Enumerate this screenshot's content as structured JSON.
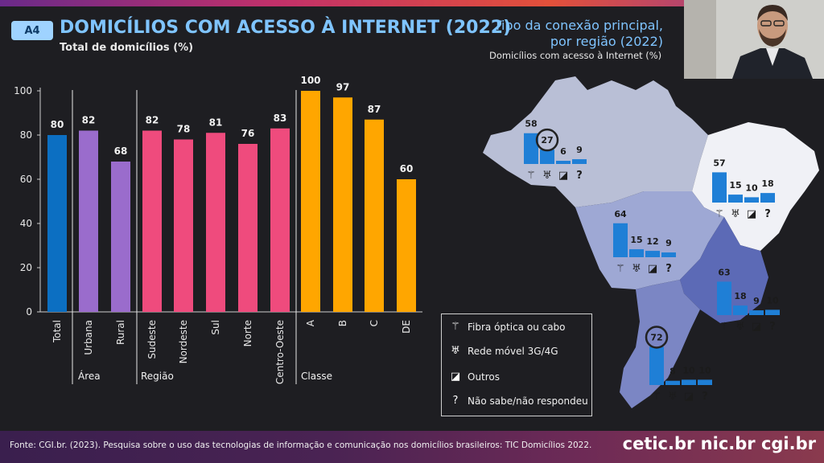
{
  "header": {
    "badge": "A4",
    "title": "DOMICÍLIOS COM ACESSO À INTERNET (2022)",
    "subtitle": "Total de domicílios (%)"
  },
  "map_panel": {
    "title_line1": "Tipo da conexão principal,",
    "title_line2": "por região (2022)",
    "subtitle": "Domicílios com acesso à Internet (%)"
  },
  "legend": {
    "items": [
      {
        "icon": "fiber-icon",
        "label": "Fibra óptica ou cabo"
      },
      {
        "icon": "mobile-tower-icon",
        "label": "Rede móvel 3G/4G"
      },
      {
        "icon": "satellite-icon",
        "label": "Outros"
      },
      {
        "icon": "question-icon",
        "label": "Não sabe/não respondeu"
      }
    ]
  },
  "footer": {
    "source": "Fonte: CGI.br. (2023). Pesquisa sobre o uso das tecnologias de informação e comunicação nos domicílios brasileiros: TIC Domicílios 2022.",
    "logos": "cetic.br  nic.br  cgi.br"
  },
  "colors": {
    "total": "#0c6fc2",
    "area": "#9a6ccc",
    "regiao": "#ef4b7d",
    "classe": "#ffa600",
    "map_bar": "#1f7fd6"
  },
  "chart_data": [
    {
      "type": "bar",
      "title": "DOMICÍLIOS COM ACESSO À INTERNET (2022)",
      "ylabel": "Total de domicílios (%)",
      "ylim": [
        0,
        100
      ],
      "yticks": [
        0,
        20,
        40,
        60,
        80,
        100
      ],
      "grid": false,
      "categories": [
        "Total",
        "Urbana",
        "Rural",
        "Sudeste",
        "Nordeste",
        "Sul",
        "Norte",
        "Centro-Oeste",
        "A",
        "B",
        "C",
        "DE"
      ],
      "values": [
        80,
        82,
        68,
        82,
        78,
        81,
        76,
        83,
        100,
        97,
        87,
        60
      ],
      "groups": [
        {
          "name": "",
          "categories": [
            "Total"
          ]
        },
        {
          "name": "Área",
          "categories": [
            "Urbana",
            "Rural"
          ]
        },
        {
          "name": "Região",
          "categories": [
            "Sudeste",
            "Nordeste",
            "Sul",
            "Norte",
            "Centro-Oeste"
          ]
        },
        {
          "name": "Classe",
          "categories": [
            "A",
            "B",
            "C",
            "DE"
          ]
        }
      ]
    },
    {
      "type": "bar",
      "title": "Tipo da conexão principal, por região (2022)",
      "ylabel": "Domicílios com acesso à Internet (%)",
      "categories": [
        "Fibra óptica ou cabo",
        "Rede móvel 3G/4G",
        "Outros",
        "Não sabe/não respondeu"
      ],
      "series": [
        {
          "name": "Norte",
          "values": [
            58,
            27,
            6,
            9
          ],
          "highlight_index": 1
        },
        {
          "name": "Nordeste",
          "values": [
            57,
            15,
            10,
            18
          ]
        },
        {
          "name": "Centro-Oeste",
          "values": [
            64,
            15,
            12,
            9
          ]
        },
        {
          "name": "Sudeste",
          "values": [
            63,
            18,
            9,
            10
          ]
        },
        {
          "name": "Sul",
          "values": [
            72,
            8,
            10,
            10
          ],
          "highlight_index": 0
        }
      ]
    }
  ]
}
